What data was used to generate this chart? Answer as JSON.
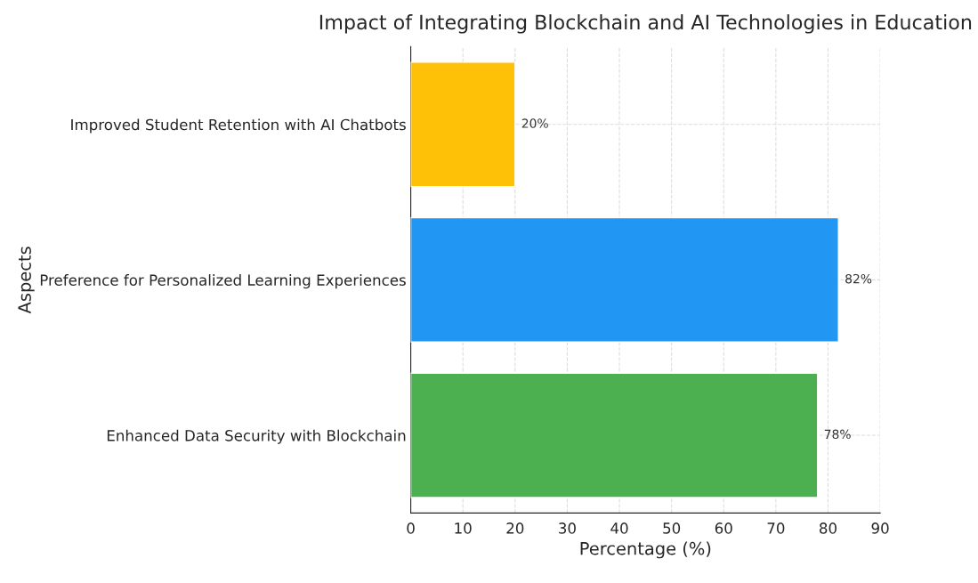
{
  "chart_data": {
    "type": "bar",
    "orientation": "horizontal",
    "title": "Impact of Integrating Blockchain and AI Technologies in Education",
    "xlabel": "Percentage (%)",
    "ylabel": "Aspects",
    "categories": [
      "Improved Student Retention with AI Chatbots",
      "Preference for Personalized Learning Experiences",
      "Enhanced Data Security with Blockchain"
    ],
    "values": [
      20,
      82,
      78
    ],
    "colors": [
      "#ffc107",
      "#2196f3",
      "#4caf50"
    ],
    "value_labels": [
      "20%",
      "82%",
      "78%"
    ],
    "xlim": [
      0,
      90
    ],
    "xticks": [
      0,
      10,
      20,
      30,
      40,
      50,
      60,
      70,
      80,
      90
    ],
    "grid": true,
    "legend": false
  }
}
